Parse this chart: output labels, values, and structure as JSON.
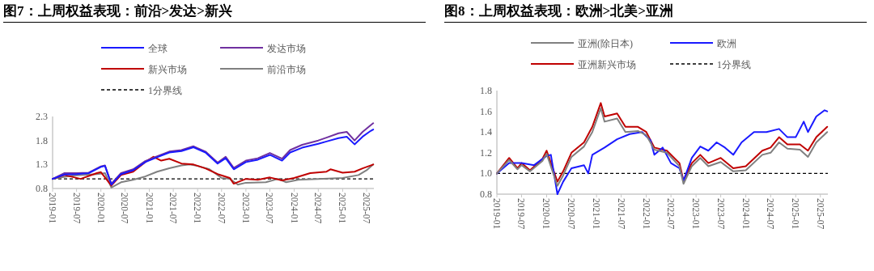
{
  "chart_data": [
    {
      "type": "line",
      "title": "图7：上周权益表现：前沿>发达>新兴",
      "legend": "top",
      "grid": false,
      "line_style": "solid",
      "xlim": [
        "2019-01-01",
        "2025-08-25"
      ],
      "xticks": [
        "2019-01",
        "2019-07",
        "2020-01",
        "2020-07",
        "2021-01",
        "2021-07",
        "2022-01",
        "2022-07",
        "2023-01",
        "2023-07",
        "2024-01",
        "2024-07",
        "2025-01",
        "2025-07"
      ],
      "ylim": [
        0.8,
        2.3
      ],
      "yticks": [
        0.8,
        1.3,
        1.8,
        2.3
      ],
      "series": [
        {
          "name": "全球",
          "color": "#1a1aff",
          "x": [
            "2019-01",
            "2019-04",
            "2019-07",
            "2019-10",
            "2020-01",
            "2020-02",
            "2020-03-20",
            "2020-06",
            "2020-09",
            "2020-12",
            "2021-03",
            "2021-06",
            "2021-09",
            "2021-12",
            "2022-01",
            "2022-03",
            "2022-06",
            "2022-08",
            "2022-10",
            "2023-01",
            "2023-04",
            "2023-07",
            "2023-10",
            "2023-12",
            "2024-03",
            "2024-07",
            "2024-09",
            "2024-12",
            "2025-02",
            "2025-04",
            "2025-06",
            "2025-08",
            "2025-08-20"
          ],
          "values": [
            1.0,
            1.09,
            1.1,
            1.12,
            1.25,
            1.27,
            0.88,
            1.1,
            1.18,
            1.35,
            1.45,
            1.55,
            1.58,
            1.66,
            1.62,
            1.55,
            1.32,
            1.43,
            1.2,
            1.35,
            1.4,
            1.5,
            1.38,
            1.55,
            1.65,
            1.73,
            1.78,
            1.85,
            1.88,
            1.72,
            1.88,
            2.0,
            2.03
          ]
        },
        {
          "name": "发达市场",
          "color": "#7030a0",
          "x": [
            "2019-01",
            "2019-04",
            "2019-07",
            "2019-10",
            "2020-01",
            "2020-02",
            "2020-03-20",
            "2020-06",
            "2020-09",
            "2020-12",
            "2021-03",
            "2021-06",
            "2021-09",
            "2021-12",
            "2022-01",
            "2022-03",
            "2022-06",
            "2022-08",
            "2022-10",
            "2023-01",
            "2023-04",
            "2023-07",
            "2023-10",
            "2023-12",
            "2024-03",
            "2024-07",
            "2024-09",
            "2024-12",
            "2025-02",
            "2025-04",
            "2025-06",
            "2025-08",
            "2025-08-20"
          ],
          "values": [
            1.0,
            1.12,
            1.12,
            1.13,
            1.26,
            1.28,
            0.9,
            1.12,
            1.2,
            1.37,
            1.47,
            1.57,
            1.6,
            1.68,
            1.64,
            1.57,
            1.34,
            1.46,
            1.23,
            1.38,
            1.43,
            1.54,
            1.42,
            1.6,
            1.71,
            1.8,
            1.86,
            1.95,
            1.98,
            1.8,
            1.98,
            2.12,
            2.16
          ]
        },
        {
          "name": "新兴市场",
          "color": "#c00000",
          "x": [
            "2019-01",
            "2019-04",
            "2019-08",
            "2019-12",
            "2020-01",
            "2020-03-20",
            "2020-06",
            "2020-09",
            "2020-12",
            "2021-02",
            "2021-04",
            "2021-06",
            "2021-09",
            "2021-12",
            "2022-03",
            "2022-06",
            "2022-09",
            "2022-10",
            "2023-01",
            "2023-04",
            "2023-07",
            "2023-10",
            "2024-01",
            "2024-05",
            "2024-09",
            "2024-10",
            "2025-01",
            "2025-04",
            "2025-06",
            "2025-08-20"
          ],
          "values": [
            1.0,
            1.08,
            1.0,
            1.12,
            1.14,
            0.86,
            1.08,
            1.15,
            1.35,
            1.46,
            1.38,
            1.42,
            1.32,
            1.3,
            1.22,
            1.1,
            1.02,
            0.9,
            1.0,
            0.98,
            1.03,
            0.97,
            1.02,
            1.12,
            1.15,
            1.2,
            1.13,
            1.15,
            1.22,
            1.3
          ]
        },
        {
          "name": "前沿市场",
          "color": "#808080",
          "x": [
            "2019-01",
            "2019-06",
            "2019-12",
            "2020-02",
            "2020-03-20",
            "2020-06",
            "2020-09",
            "2020-12",
            "2021-03",
            "2021-06",
            "2021-09",
            "2021-11",
            "2022-01",
            "2022-04",
            "2022-07",
            "2022-09",
            "2022-11",
            "2023-01",
            "2023-06",
            "2023-09",
            "2023-11",
            "2024-02",
            "2024-07",
            "2025-01",
            "2025-05",
            "2025-07",
            "2025-08-20"
          ],
          "values": [
            1.0,
            1.07,
            1.1,
            1.12,
            0.82,
            0.93,
            0.98,
            1.05,
            1.15,
            1.22,
            1.28,
            1.3,
            1.27,
            1.2,
            1.02,
            1.0,
            0.88,
            0.92,
            0.93,
            1.0,
            0.93,
            0.98,
            1.0,
            1.02,
            1.08,
            1.18,
            1.3
          ]
        }
      ],
      "ref_lines": [
        {
          "axis": "y",
          "value": 1,
          "label": "1分界线",
          "color": "#000000",
          "line_style": "dashed"
        }
      ]
    },
    {
      "type": "line",
      "title": "图8：上周权益表现：欧洲>北美>亚洲",
      "legend": "top",
      "grid": false,
      "line_style": "solid",
      "xlim": [
        "2019-01-01",
        "2025-08-25"
      ],
      "xticks": [
        "2019-01",
        "2019-07",
        "2020-01",
        "2020-07",
        "2021-01",
        "2021-07",
        "2022-01",
        "2022-07",
        "2023-01",
        "2023-07",
        "2024-01",
        "2024-07",
        "2025-01",
        "2025-07"
      ],
      "ylim": [
        0.8,
        1.8
      ],
      "yticks": [
        0.8,
        {
          "value": 1,
          "label": "1.0"
        },
        1.2,
        1.4,
        1.6,
        1.8
      ],
      "series": [
        {
          "name": "亚洲(除日本)",
          "color": "#808080",
          "x": [
            "2019-01",
            "2019-04",
            "2019-06",
            "2019-07",
            "2019-09",
            "2019-12",
            "2020-01",
            "2020-03-20",
            "2020-05",
            "2020-07",
            "2020-10",
            "2020-12",
            "2021-02",
            "2021-03",
            "2021-06",
            "2021-08",
            "2021-11",
            "2022-01",
            "2022-03",
            "2022-06",
            "2022-09",
            "2022-10",
            "2022-12",
            "2023-02",
            "2023-04",
            "2023-07",
            "2023-10",
            "2024-01",
            "2024-05",
            "2024-07",
            "2024-09",
            "2024-11",
            "2025-02",
            "2025-04",
            "2025-06",
            "2025-08-20"
          ],
          "values": [
            1.0,
            1.13,
            1.04,
            1.08,
            1.02,
            1.12,
            1.19,
            0.88,
            0.98,
            1.16,
            1.26,
            1.4,
            1.63,
            1.5,
            1.53,
            1.4,
            1.41,
            1.37,
            1.23,
            1.2,
            1.07,
            0.9,
            1.07,
            1.15,
            1.07,
            1.11,
            1.02,
            1.03,
            1.18,
            1.2,
            1.3,
            1.24,
            1.23,
            1.16,
            1.3,
            1.4
          ]
        },
        {
          "name": "欧洲",
          "color": "#1a1aff",
          "x": [
            "2019-01",
            "2019-04",
            "2019-07",
            "2019-10",
            "2020-01",
            "2020-02",
            "2020-03-20",
            "2020-05",
            "2020-07",
            "2020-10",
            "2020-11",
            "2020-12",
            "2021-03",
            "2021-06",
            "2021-09",
            "2021-12",
            "2022-02",
            "2022-03",
            "2022-05",
            "2022-07",
            "2022-09",
            "2022-10",
            "2022-12",
            "2023-02",
            "2023-04",
            "2023-06",
            "2023-08",
            "2023-10",
            "2023-12",
            "2024-03",
            "2024-06",
            "2024-09",
            "2024-11",
            "2025-01",
            "2025-03",
            "2025-04",
            "2025-06",
            "2025-08",
            "2025-08-20"
          ],
          "values": [
            1.0,
            1.1,
            1.1,
            1.08,
            1.17,
            1.18,
            0.8,
            0.92,
            1.05,
            1.08,
            1.0,
            1.18,
            1.25,
            1.33,
            1.38,
            1.4,
            1.32,
            1.18,
            1.25,
            1.1,
            1.05,
            0.93,
            1.15,
            1.26,
            1.22,
            1.3,
            1.25,
            1.18,
            1.3,
            1.4,
            1.4,
            1.43,
            1.35,
            1.35,
            1.5,
            1.4,
            1.55,
            1.61,
            1.6
          ]
        },
        {
          "name": "亚洲新兴市场",
          "color": "#c00000",
          "x": [
            "2019-01",
            "2019-04",
            "2019-06",
            "2019-07",
            "2019-09",
            "2019-12",
            "2020-01",
            "2020-03-20",
            "2020-05",
            "2020-07",
            "2020-10",
            "2020-12",
            "2021-02",
            "2021-03",
            "2021-06",
            "2021-08",
            "2021-11",
            "2022-01",
            "2022-03",
            "2022-06",
            "2022-09",
            "2022-10",
            "2022-12",
            "2023-02",
            "2023-04",
            "2023-07",
            "2023-10",
            "2024-01",
            "2024-05",
            "2024-07",
            "2024-09",
            "2024-11",
            "2025-02",
            "2025-04",
            "2025-06",
            "2025-08-20"
          ],
          "values": [
            1.0,
            1.15,
            1.05,
            1.1,
            1.03,
            1.14,
            1.22,
            0.92,
            1.02,
            1.2,
            1.3,
            1.45,
            1.68,
            1.55,
            1.58,
            1.45,
            1.45,
            1.4,
            1.25,
            1.22,
            1.1,
            0.93,
            1.1,
            1.18,
            1.1,
            1.15,
            1.05,
            1.07,
            1.22,
            1.25,
            1.35,
            1.28,
            1.28,
            1.22,
            1.35,
            1.45
          ]
        }
      ],
      "ref_lines": [
        {
          "axis": "y",
          "value": 1,
          "label": "1分界线",
          "color": "#000000",
          "line_style": "dashed"
        }
      ]
    }
  ]
}
